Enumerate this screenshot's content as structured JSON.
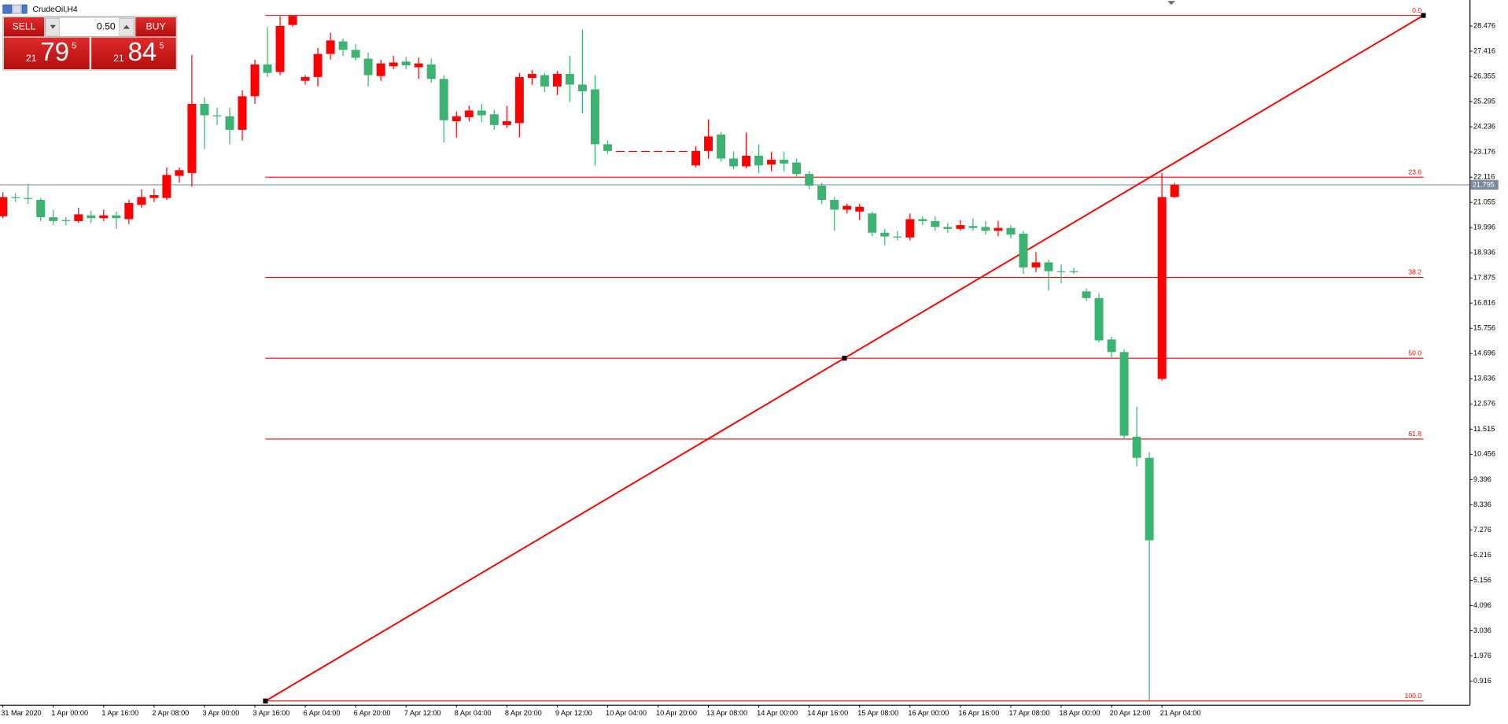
{
  "chart_data": {
    "type": "candlestick",
    "title": "CrudeOil,H4",
    "categories": [
      "31 Mar 2020",
      null,
      null,
      null,
      "1 Apr 00:00",
      null,
      null,
      null,
      "1 Apr 16:00",
      null,
      null,
      null,
      "2 Apr 08:00",
      null,
      null,
      null,
      "3 Apr 00:00",
      null,
      null,
      null,
      "3 Apr 16:00",
      null,
      null,
      null,
      "6 Apr 04:00",
      null,
      null,
      null,
      "6 Apr 20:00",
      null,
      null,
      null,
      "7 Apr 12:00",
      null,
      null,
      null,
      "8 Apr 04:00",
      null,
      null,
      null,
      "8 Apr 20:00",
      null,
      null,
      null,
      "9 Apr 12:00",
      null,
      null,
      null,
      "10 Apr 04:00",
      null,
      null,
      null,
      "10 Apr 20:00",
      null,
      null,
      null,
      "13 Apr 08:00",
      null,
      null,
      null,
      "14 Apr 00:00",
      null,
      null,
      null,
      "14 Apr 16:00",
      null,
      null,
      null,
      "15 Apr 08:00",
      null,
      null,
      null,
      "16 Apr 00:00",
      null,
      null,
      null,
      "16 Apr 16:00",
      null,
      null,
      null,
      "17 Apr 08:00",
      null,
      null,
      null,
      "18 Apr 00:00",
      null,
      null,
      null,
      "20 Apr 12:00",
      null,
      null,
      null,
      "21 Apr 04:00",
      null
    ],
    "open": [
      20.47,
      21.28,
      21.24,
      21.16,
      20.43,
      20.31,
      20.27,
      20.51,
      20.39,
      20.51,
      20.35,
      20.95,
      21.24,
      21.24,
      22.17,
      22.29,
      25.2,
      24.72,
      24.68,
      24.11,
      25.52,
      26.86,
      26.54,
      28.52,
      26.17,
      26.33,
      27.3,
      27.83,
      27.47,
      27.1,
      26.37,
      26.78,
      26.98,
      26.74,
      26.86,
      26.25,
      24.47,
      24.64,
      24.92,
      24.76,
      24.31,
      24.39,
      26.29,
      26.41,
      25.93,
      26.46,
      26.01,
      25.81,
      23.5,
      23.22,
      23.22,
      23.22,
      23.22,
      23.22,
      23.22,
      22.61,
      23.22,
      23.91,
      22.9,
      22.57,
      23.02,
      22.65,
      22.85,
      22.73,
      22.25,
      21.76,
      21.16,
      20.75,
      20.67,
      20.59,
      19.78,
      19.62,
      19.58,
      20.35,
      20.27,
      20.02,
      19.94,
      20.06,
      20.02,
      19.86,
      19.98,
      19.74,
      18.32,
      18.53,
      18.16,
      18.16,
      17.31,
      17.03,
      15.29,
      14.76,
      11.2,
      10.31,
      13.63,
      21.28
    ],
    "high": [
      21.48,
      21.44,
      21.84,
      21.24,
      20.75,
      20.43,
      20.83,
      20.71,
      20.75,
      20.67,
      21.16,
      21.6,
      21.64,
      22.53,
      22.53,
      27.26,
      25.48,
      25.04,
      25.04,
      25.77,
      27.06,
      28.44,
      28.88,
      28.92,
      26.41,
      27.55,
      28.19,
      27.95,
      27.71,
      27.35,
      27.06,
      27.22,
      27.18,
      27.14,
      27.1,
      26.41,
      24.88,
      25.12,
      25.2,
      24.96,
      25.12,
      26.5,
      26.62,
      26.5,
      26.58,
      27.22,
      28.32,
      26.41,
      23.66,
      23.22,
      23.22,
      23.22,
      23.22,
      23.22,
      23.22,
      23.42,
      24.55,
      24.03,
      23.18,
      23.99,
      23.5,
      23.18,
      23.18,
      22.9,
      22.37,
      21.88,
      21.28,
      20.99,
      20.99,
      20.67,
      19.94,
      19.86,
      20.59,
      20.47,
      20.47,
      20.19,
      20.31,
      20.39,
      20.27,
      20.27,
      20.1,
      19.86,
      18.97,
      18.65,
      18.45,
      18.32,
      17.43,
      17.23,
      15.41,
      14.89,
      12.46,
      10.56,
      22.29,
      21.88
    ],
    "low": [
      20.39,
      21.07,
      20.99,
      20.27,
      20.1,
      20.1,
      20.19,
      20.19,
      20.27,
      19.94,
      20.14,
      20.83,
      21.07,
      21.16,
      21.88,
      21.72,
      23.3,
      24.31,
      23.5,
      23.66,
      25.2,
      26.33,
      26.41,
      28.44,
      26.01,
      25.93,
      27.06,
      27.22,
      27.02,
      25.93,
      26.17,
      26.66,
      26.66,
      26.25,
      26.09,
      23.58,
      23.79,
      24.47,
      24.43,
      24.11,
      24.19,
      23.79,
      26.01,
      25.69,
      25.57,
      25.28,
      24.8,
      22.61,
      23.1,
      23.22,
      23.22,
      23.22,
      23.22,
      23.22,
      23.22,
      22.53,
      22.9,
      22.77,
      22.45,
      22.49,
      22.29,
      22.37,
      22.37,
      22.09,
      21.6,
      20.99,
      19.86,
      20.59,
      20.31,
      19.62,
      19.25,
      19.46,
      19.46,
      20.1,
      19.86,
      19.78,
      19.86,
      19.86,
      19.7,
      19.62,
      19.54,
      18.04,
      18.12,
      17.35,
      17.64,
      18.04,
      16.91,
      15.17,
      14.48,
      11.08,
      9.95,
      0.08,
      13.55,
      21.24
    ],
    "close": [
      21.28,
      21.24,
      21.2,
      20.43,
      20.27,
      20.27,
      20.55,
      20.39,
      20.51,
      20.39,
      21.03,
      21.28,
      21.36,
      22.21,
      22.41,
      25.2,
      24.72,
      24.68,
      24.11,
      25.52,
      26.86,
      26.5,
      28.48,
      28.9,
      26.33,
      27.3,
      27.87,
      27.47,
      27.14,
      26.41,
      26.9,
      26.94,
      26.82,
      26.9,
      26.25,
      24.51,
      24.68,
      24.92,
      24.72,
      24.31,
      24.47,
      26.33,
      26.46,
      25.93,
      26.46,
      26.01,
      25.73,
      23.5,
      23.22,
      23.22,
      23.22,
      23.22,
      23.22,
      23.22,
      23.22,
      23.22,
      23.83,
      22.9,
      22.57,
      23.02,
      22.61,
      22.85,
      22.69,
      22.25,
      21.76,
      21.16,
      20.75,
      20.91,
      20.87,
      19.78,
      19.62,
      19.58,
      20.35,
      20.27,
      20.02,
      19.94,
      20.1,
      19.98,
      19.86,
      19.98,
      19.7,
      18.32,
      18.53,
      18.16,
      18.14,
      18.14,
      17.03,
      15.25,
      14.76,
      11.24,
      10.31,
      6.84,
      21.28,
      21.795
    ],
    "up_color": "#ff0000",
    "down_color": "#3cb371",
    "ylim": [
      -0.08,
      29.57
    ],
    "yticks": [
      28.476,
      27.416,
      26.355,
      25.295,
      24.236,
      23.176,
      22.116,
      21.055,
      19.996,
      18.936,
      17.875,
      16.816,
      15.756,
      14.696,
      13.636,
      12.576,
      11.515,
      10.456,
      9.396,
      8.336,
      7.276,
      6.216,
      5.156,
      4.096,
      3.036,
      1.976,
      0.916
    ],
    "current_price": 21.795,
    "current_price_color": "#8fa3b8",
    "fib": {
      "high": 28.92,
      "low": 0.08,
      "color": "#ff0000",
      "levels": [
        {
          "value": 0,
          "label": "0.0"
        },
        {
          "value": 23.6,
          "label": "23.6"
        },
        {
          "value": 38.2,
          "label": "38.2"
        },
        {
          "value": 50,
          "label": "50.0"
        },
        {
          "value": 61.8,
          "label": "61.8"
        },
        {
          "value": 100,
          "label": "100.0"
        }
      ]
    }
  },
  "trade_panel": {
    "sell": "SELL",
    "buy": "BUY",
    "lot": "0.50",
    "sell_price": {
      "big": "21",
      "main": "79",
      "frac": "5"
    },
    "buy_price": {
      "big": "21",
      "main": "84",
      "frac": "5"
    }
  }
}
